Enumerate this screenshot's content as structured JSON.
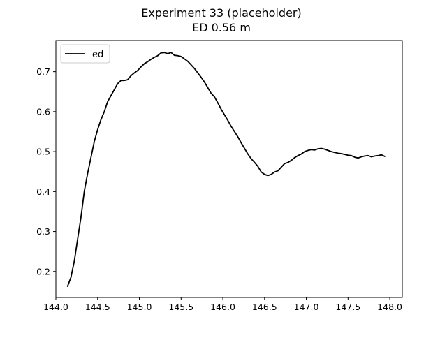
{
  "chart_data": {
    "type": "line",
    "title": "Experiment 33 (placeholder)",
    "subtitle": "ED 0.56 m",
    "xlabel": "",
    "ylabel": "",
    "xlim": [
      144.0,
      148.15
    ],
    "ylim": [
      0.135,
      0.778
    ],
    "xticks": [
      "144.0",
      "144.5",
      "145.0",
      "145.5",
      "146.0",
      "146.5",
      "147.0",
      "147.5",
      "148.0"
    ],
    "yticks": [
      "0.2",
      "0.3",
      "0.4",
      "0.5",
      "0.6",
      "0.7"
    ],
    "grid": false,
    "legend_position": "top-left",
    "series": [
      {
        "name": "ed",
        "color": "#000000",
        "x": [
          144.14,
          144.18,
          144.22,
          144.26,
          144.3,
          144.34,
          144.38,
          144.42,
          144.46,
          144.5,
          144.54,
          144.58,
          144.62,
          144.66,
          144.7,
          144.74,
          144.78,
          144.82,
          144.86,
          144.9,
          144.94,
          144.98,
          145.02,
          145.06,
          145.1,
          145.14,
          145.18,
          145.22,
          145.26,
          145.3,
          145.34,
          145.38,
          145.42,
          145.46,
          145.5,
          145.54,
          145.58,
          145.62,
          145.66,
          145.7,
          145.74,
          145.78,
          145.82,
          145.86,
          145.9,
          145.94,
          145.98,
          146.02,
          146.06,
          146.1,
          146.14,
          146.18,
          146.22,
          146.26,
          146.3,
          146.34,
          146.38,
          146.42,
          146.46,
          146.5,
          146.54,
          146.58,
          146.62,
          146.66,
          146.7,
          146.74,
          146.78,
          146.82,
          146.86,
          146.9,
          146.94,
          146.98,
          147.02,
          147.06,
          147.1,
          147.14,
          147.18,
          147.22,
          147.26,
          147.3,
          147.34,
          147.38,
          147.42,
          147.46,
          147.5,
          147.54,
          147.58,
          147.62,
          147.66,
          147.7,
          147.74,
          147.78,
          147.82,
          147.86,
          147.9,
          147.94
        ],
        "y": [
          0.163,
          0.185,
          0.225,
          0.28,
          0.335,
          0.4,
          0.445,
          0.485,
          0.525,
          0.555,
          0.58,
          0.6,
          0.625,
          0.64,
          0.655,
          0.67,
          0.678,
          0.678,
          0.68,
          0.69,
          0.697,
          0.703,
          0.712,
          0.72,
          0.725,
          0.731,
          0.736,
          0.74,
          0.747,
          0.748,
          0.745,
          0.748,
          0.741,
          0.74,
          0.738,
          0.732,
          0.726,
          0.717,
          0.708,
          0.697,
          0.686,
          0.674,
          0.66,
          0.646,
          0.637,
          0.622,
          0.606,
          0.592,
          0.578,
          0.563,
          0.55,
          0.537,
          0.522,
          0.508,
          0.494,
          0.482,
          0.473,
          0.463,
          0.449,
          0.443,
          0.44,
          0.443,
          0.449,
          0.452,
          0.461,
          0.47,
          0.473,
          0.478,
          0.485,
          0.49,
          0.494,
          0.5,
          0.503,
          0.505,
          0.504,
          0.507,
          0.508,
          0.506,
          0.503,
          0.5,
          0.498,
          0.496,
          0.495,
          0.493,
          0.491,
          0.49,
          0.486,
          0.484,
          0.487,
          0.489,
          0.49,
          0.487,
          0.489,
          0.49,
          0.492,
          0.488
        ]
      }
    ]
  }
}
